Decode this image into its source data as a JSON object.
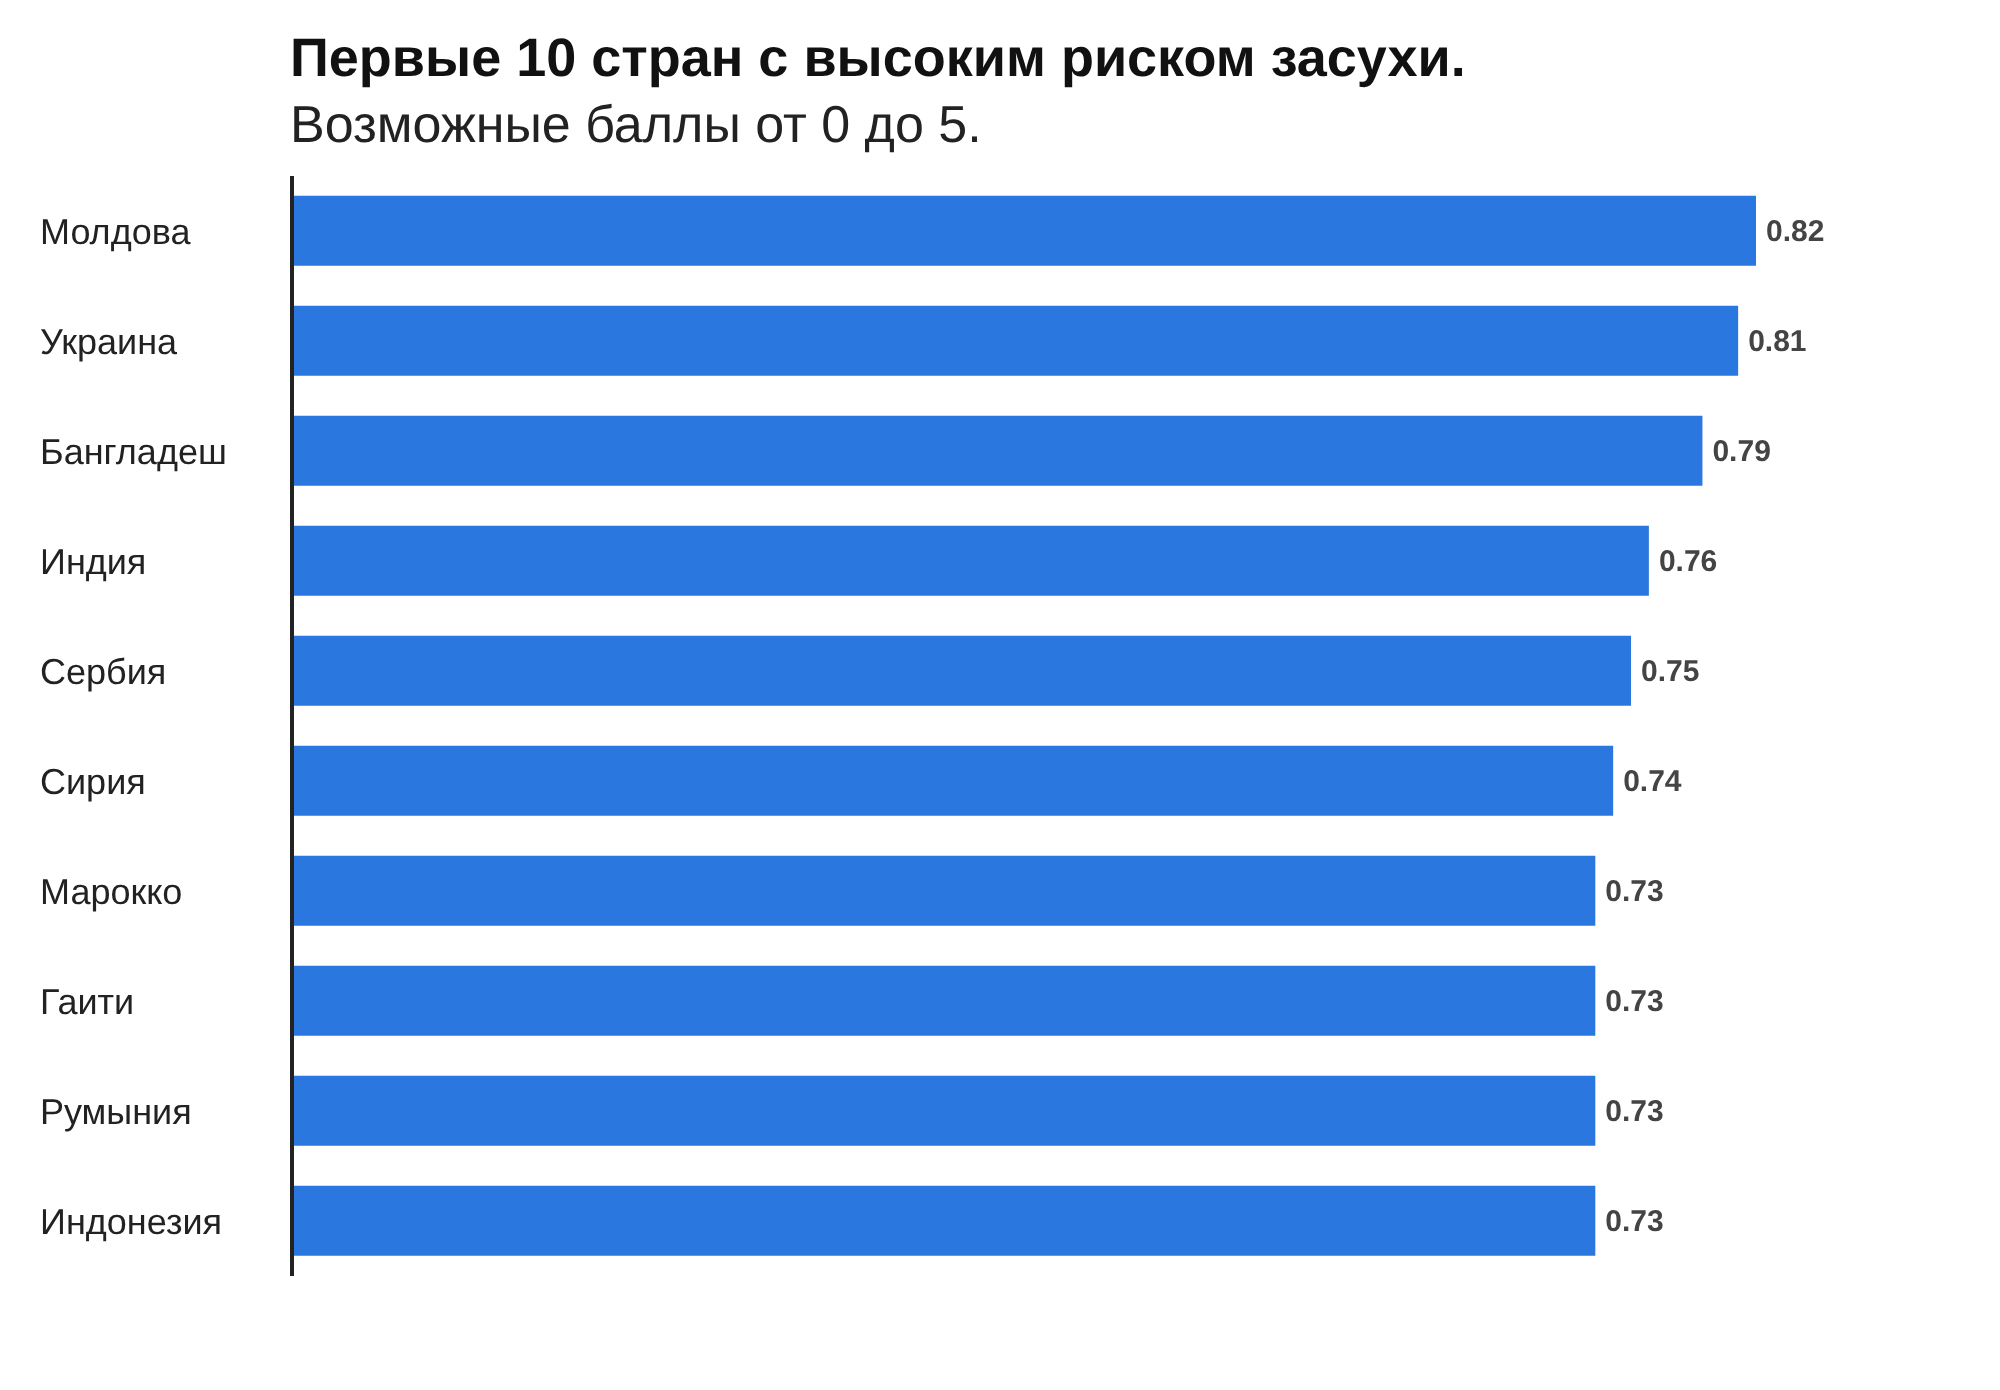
{
  "chart_data": {
    "type": "bar",
    "orientation": "horizontal",
    "title": "Первые 10 стран с высоким риском засухи.",
    "subtitle": "Возможные баллы от 0 до 5.",
    "categories": [
      "Молдова",
      "Украина",
      "Бангладеш",
      "Индия",
      "Сербия",
      "Сирия",
      "Марокко",
      "Гаити",
      "Румыния",
      "Индонезия"
    ],
    "values": [
      0.82,
      0.81,
      0.79,
      0.76,
      0.75,
      0.74,
      0.73,
      0.73,
      0.73,
      0.73
    ],
    "color": "#2a77e0",
    "tick_labels": "y",
    "data_labels": true
  }
}
